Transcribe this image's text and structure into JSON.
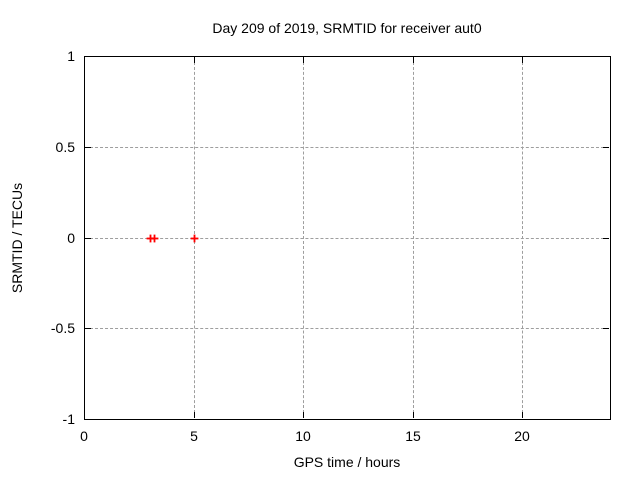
{
  "window": {
    "background_color": "#ffffff",
    "text_color": "#000000"
  },
  "chart_data": {
    "type": "scatter",
    "title": "Day 209 of 2019, SRMTID for receiver aut0",
    "xlabel": "GPS time / hours",
    "ylabel": "SRMTID / TECUs",
    "xlim": [
      0,
      24
    ],
    "ylim": [
      -1,
      1
    ],
    "xticks": [
      0,
      5,
      10,
      15,
      20
    ],
    "xtick_labels": [
      "0",
      "5",
      "10",
      "15",
      "20"
    ],
    "yticks": [
      -1,
      -0.5,
      0,
      0.5,
      1
    ],
    "ytick_labels": [
      "-1",
      "-0.5",
      "0",
      "0.5",
      "1"
    ],
    "grid": true,
    "grid_style": "dashed",
    "grid_color": "#9e9e9e",
    "axis_color": "#000000",
    "legend": "none",
    "series": [
      {
        "name": "SRMTID",
        "marker": "plus",
        "color": "#ff0000",
        "points": [
          [
            3.0,
            0.0
          ],
          [
            3.2,
            0.0
          ],
          [
            5.0,
            0.0
          ]
        ]
      }
    ]
  }
}
